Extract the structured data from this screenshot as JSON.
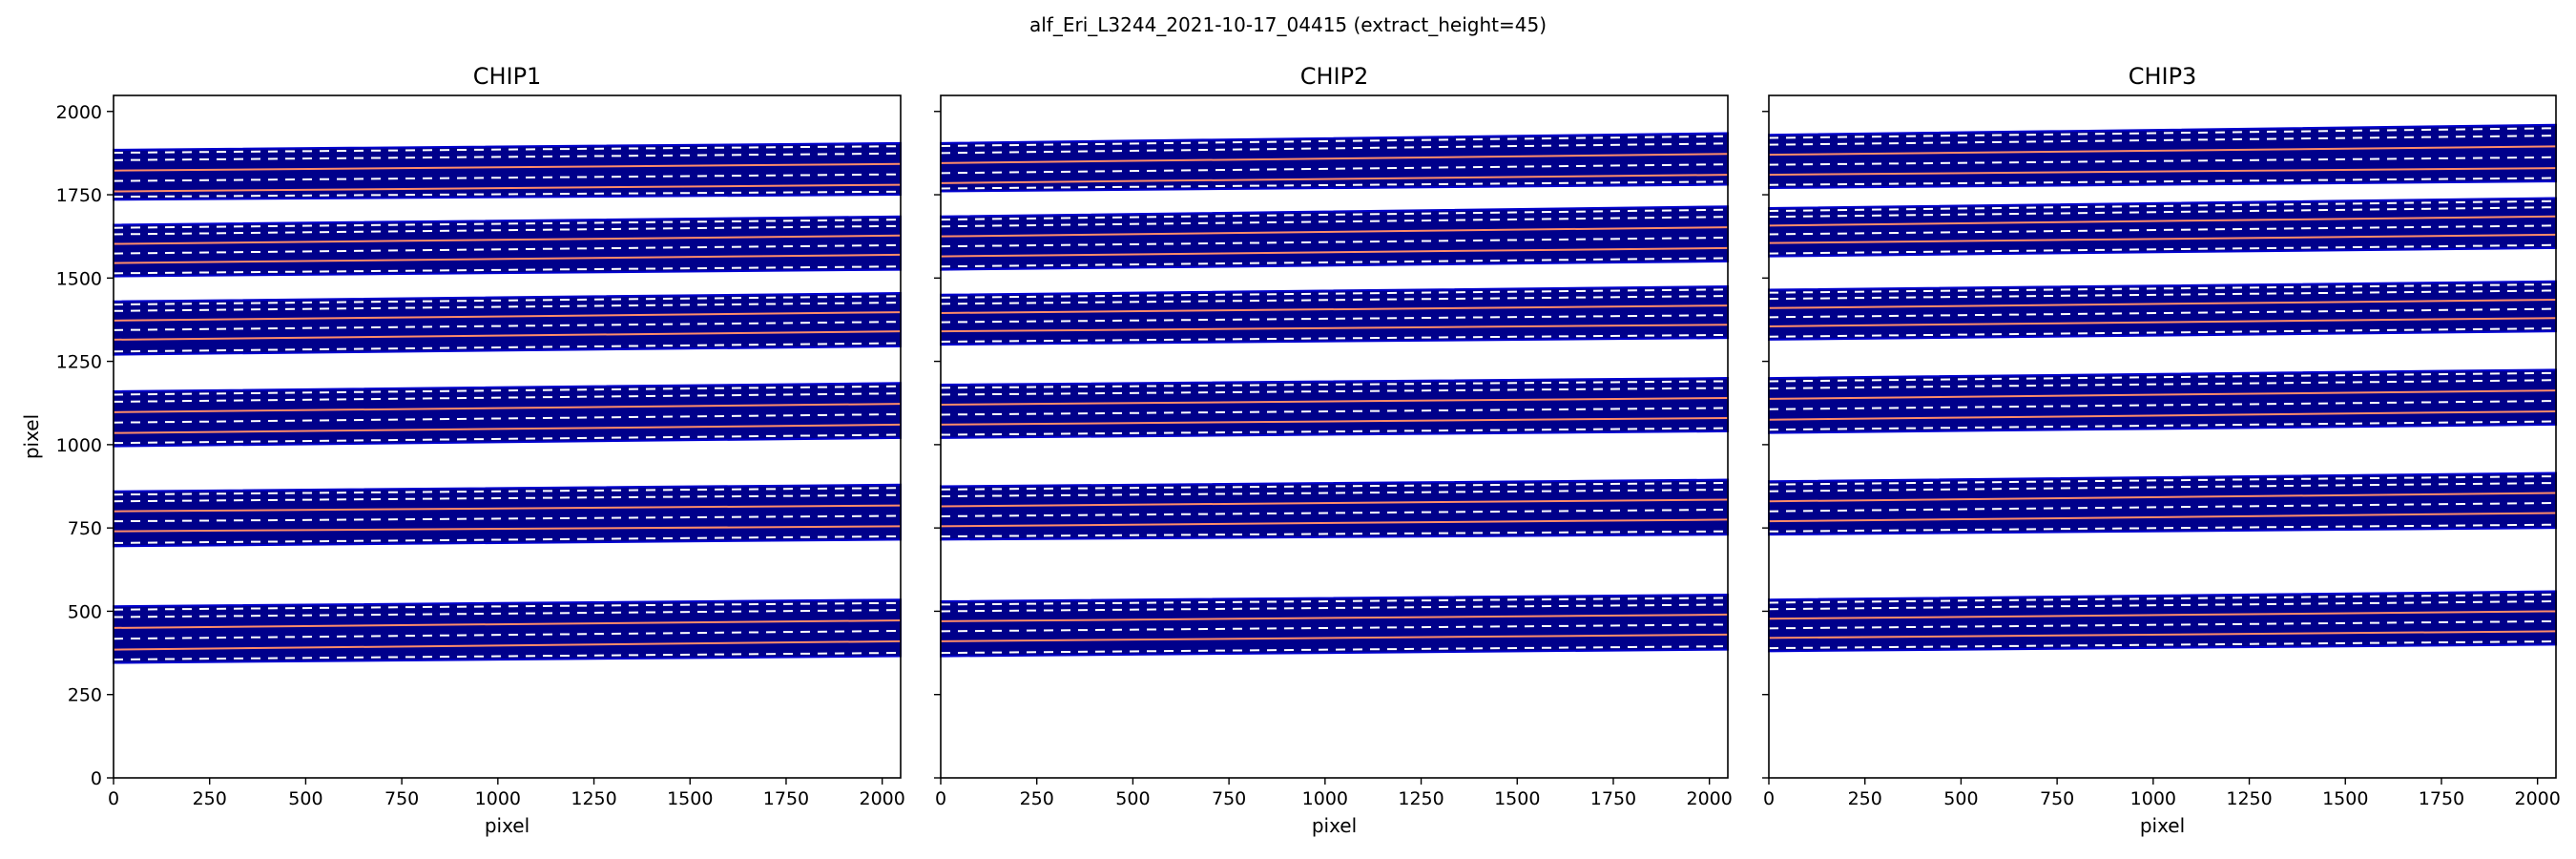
{
  "figure": {
    "suptitle": "alf_Eri_L3244_2021-10-17_04415  (extract_height=45)"
  },
  "colors": {
    "order_fill": "#00008b",
    "order_edge": "#0000cd",
    "center_trace": "#ff8c69",
    "edge_dashes": "#ffffff",
    "axes_frame": "#000000"
  },
  "chart_data": [
    {
      "type": "area",
      "title": "CHIP1",
      "xlabel": "pixel",
      "ylabel": "pixel",
      "xlim": [
        0,
        2048
      ],
      "ylim": [
        0,
        2048
      ],
      "xticks": [
        0,
        250,
        500,
        750,
        1000,
        1250,
        1500,
        1750,
        2000
      ],
      "yticks": [
        0,
        250,
        500,
        750,
        1000,
        1250,
        1500,
        1750,
        2000
      ],
      "show_ytick_labels": true,
      "grid": false,
      "orders": [
        {
          "bottom": [
            345,
            365
          ],
          "top": [
            515,
            535
          ],
          "traces": [
            385,
            410
          ]
        },
        {
          "bottom": [
            695,
            715
          ],
          "top": [
            860,
            880
          ],
          "traces": [
            740,
            755
          ]
        },
        {
          "bottom": [
            995,
            1020
          ],
          "top": [
            1160,
            1185
          ],
          "traces": [
            1035,
            1060
          ]
        },
        {
          "bottom": [
            1270,
            1295
          ],
          "top": [
            1430,
            1455
          ],
          "traces": [
            1315,
            1340
          ]
        },
        {
          "bottom": [
            1505,
            1525
          ],
          "top": [
            1660,
            1685
          ],
          "traces": [
            1545,
            1570
          ]
        },
        {
          "bottom": [
            1735,
            1750
          ],
          "top": [
            1885,
            1905
          ],
          "traces": [
            1760,
            1780
          ]
        }
      ]
    },
    {
      "type": "area",
      "title": "CHIP2",
      "xlabel": "pixel",
      "ylabel": "",
      "xlim": [
        0,
        2048
      ],
      "ylim": [
        0,
        2048
      ],
      "xticks": [
        0,
        250,
        500,
        750,
        1000,
        1250,
        1500,
        1750,
        2000
      ],
      "yticks": [
        0,
        250,
        500,
        750,
        1000,
        1250,
        1500,
        1750,
        2000
      ],
      "show_ytick_labels": false,
      "grid": false,
      "orders": [
        {
          "bottom": [
            365,
            385
          ],
          "top": [
            530,
            550
          ],
          "traces": [
            410,
            430
          ]
        },
        {
          "bottom": [
            715,
            730
          ],
          "top": [
            875,
            895
          ],
          "traces": [
            755,
            775
          ]
        },
        {
          "bottom": [
            1020,
            1040
          ],
          "top": [
            1180,
            1200
          ],
          "traces": [
            1060,
            1080
          ]
        },
        {
          "bottom": [
            1300,
            1320
          ],
          "top": [
            1450,
            1475
          ],
          "traces": [
            1340,
            1360
          ]
        },
        {
          "bottom": [
            1525,
            1550
          ],
          "top": [
            1685,
            1715
          ],
          "traces": [
            1565,
            1590
          ]
        },
        {
          "bottom": [
            1760,
            1780
          ],
          "top": [
            1905,
            1935
          ],
          "traces": [
            1785,
            1810
          ]
        }
      ]
    },
    {
      "type": "area",
      "title": "CHIP3",
      "xlabel": "pixel",
      "ylabel": "",
      "xlim": [
        0,
        2048
      ],
      "ylim": [
        0,
        2048
      ],
      "xticks": [
        0,
        250,
        500,
        750,
        1000,
        1250,
        1500,
        1750,
        2000
      ],
      "yticks": [
        0,
        250,
        500,
        750,
        1000,
        1250,
        1500,
        1750,
        2000
      ],
      "show_ytick_labels": false,
      "grid": false,
      "orders": [
        {
          "bottom": [
            380,
            400
          ],
          "top": [
            535,
            560
          ],
          "traces": [
            420,
            440
          ]
        },
        {
          "bottom": [
            730,
            750
          ],
          "top": [
            890,
            915
          ],
          "traces": [
            770,
            795
          ]
        },
        {
          "bottom": [
            1035,
            1060
          ],
          "top": [
            1200,
            1225
          ],
          "traces": [
            1075,
            1100
          ]
        },
        {
          "bottom": [
            1315,
            1340
          ],
          "top": [
            1465,
            1490
          ],
          "traces": [
            1355,
            1380
          ]
        },
        {
          "bottom": [
            1565,
            1590
          ],
          "top": [
            1710,
            1740
          ],
          "traces": [
            1605,
            1630
          ]
        },
        {
          "bottom": [
            1770,
            1790
          ],
          "top": [
            1930,
            1960
          ],
          "traces": [
            1810,
            1830
          ]
        }
      ]
    }
  ]
}
